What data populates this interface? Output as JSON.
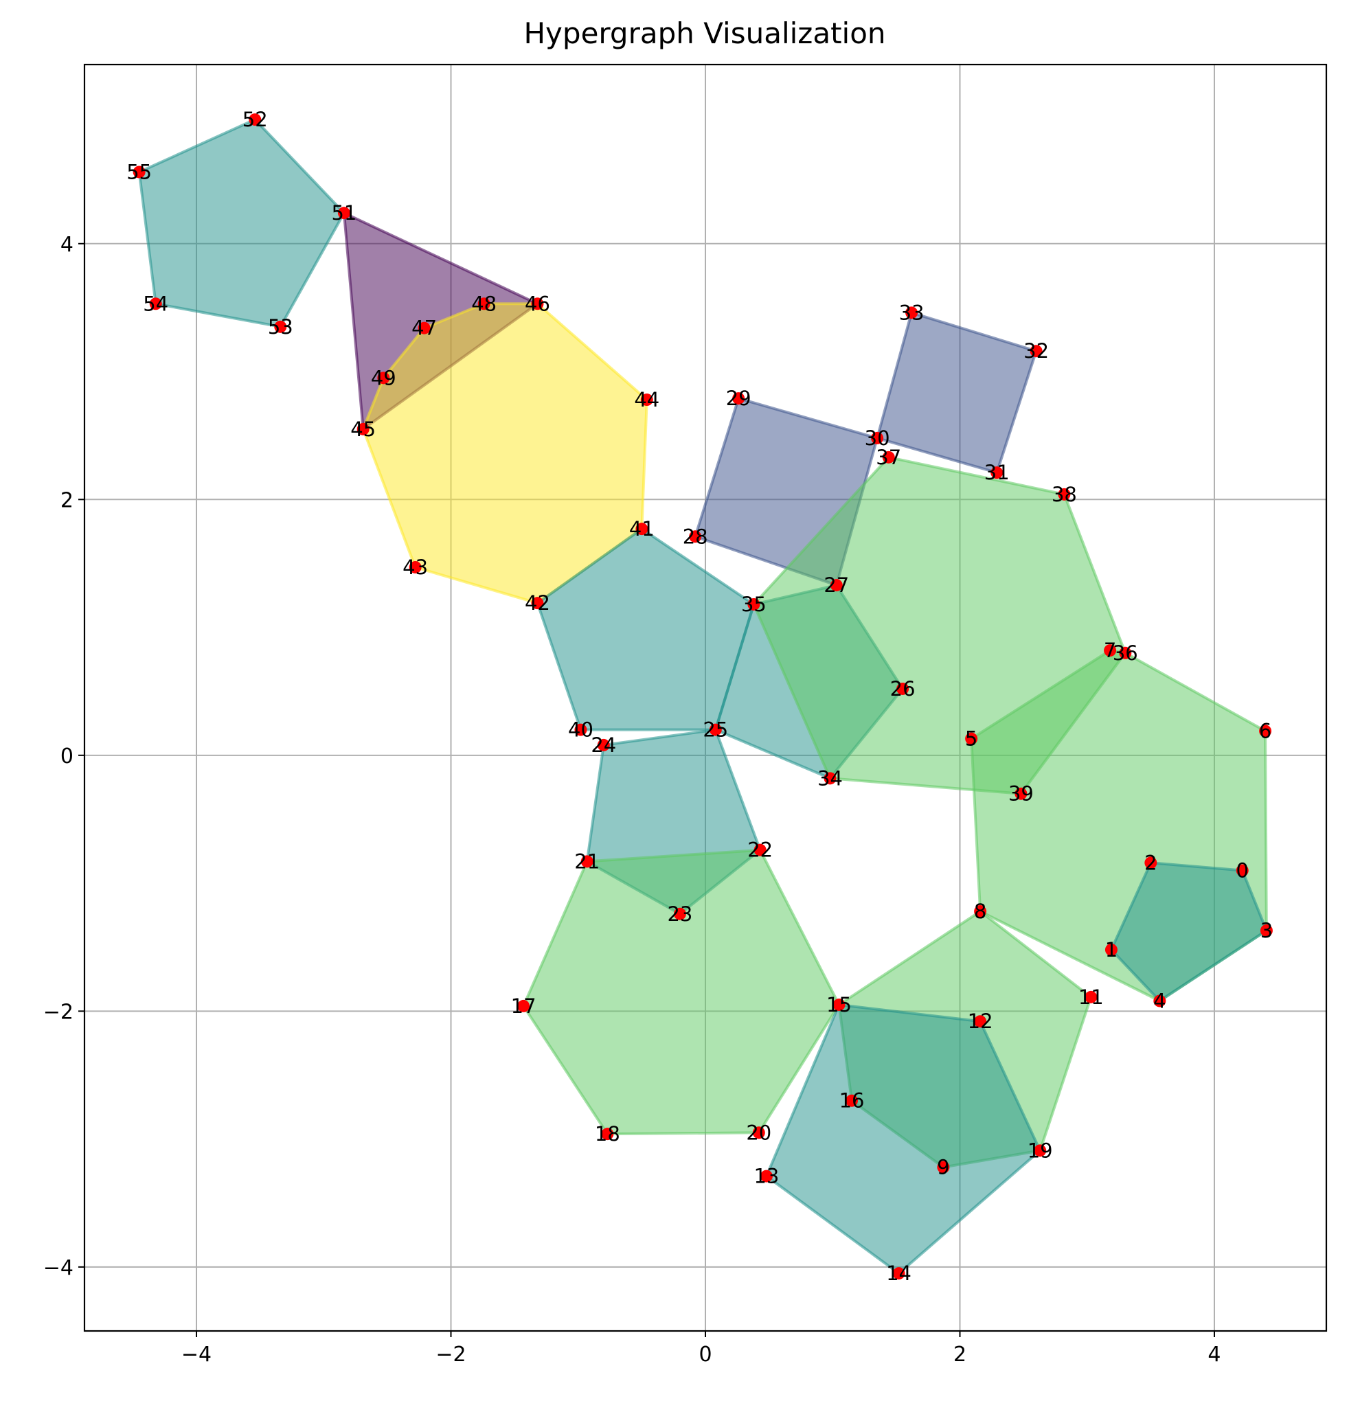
{
  "chart_data": {
    "type": "scatter",
    "title": "Hypergraph Visualization",
    "xlabel": "",
    "ylabel": "",
    "xlim": [
      -4.88,
      4.88
    ],
    "ylim": [
      -4.5,
      5.4
    ],
    "x_ticks": [
      -4,
      -2,
      0,
      2,
      4
    ],
    "y_ticks": [
      -4,
      -2,
      0,
      2,
      4
    ],
    "x_tick_labels": [
      "−4",
      "−2",
      "0",
      "2",
      "4"
    ],
    "y_tick_labels": [
      "−4",
      "−2",
      "0",
      "2",
      "4"
    ],
    "grid": true,
    "node_color": "#ff0000",
    "nodes": [
      {
        "id": "0",
        "x": 4.22,
        "y": -0.9
      },
      {
        "id": "1",
        "x": 3.19,
        "y": -1.52
      },
      {
        "id": "2",
        "x": 3.5,
        "y": -0.84
      },
      {
        "id": "3",
        "x": 4.41,
        "y": -1.37
      },
      {
        "id": "4",
        "x": 3.57,
        "y": -1.92
      },
      {
        "id": "5",
        "x": 2.09,
        "y": 0.13
      },
      {
        "id": "6",
        "x": 4.4,
        "y": 0.19
      },
      {
        "id": "7",
        "x": 3.18,
        "y": 0.82
      },
      {
        "id": "8",
        "x": 2.16,
        "y": -1.22
      },
      {
        "id": "9",
        "x": 1.87,
        "y": -3.22
      },
      {
        "id": "11",
        "x": 3.03,
        "y": -1.89
      },
      {
        "id": "12",
        "x": 2.16,
        "y": -2.08
      },
      {
        "id": "13",
        "x": 0.48,
        "y": -3.29
      },
      {
        "id": "14",
        "x": 1.52,
        "y": -4.05
      },
      {
        "id": "15",
        "x": 1.05,
        "y": -1.95
      },
      {
        "id": "16",
        "x": 1.15,
        "y": -2.7
      },
      {
        "id": "17",
        "x": -1.43,
        "y": -1.96
      },
      {
        "id": "18",
        "x": -0.77,
        "y": -2.96
      },
      {
        "id": "19",
        "x": 2.63,
        "y": -3.09
      },
      {
        "id": "20",
        "x": 0.42,
        "y": -2.95
      },
      {
        "id": "21",
        "x": -0.93,
        "y": -0.83
      },
      {
        "id": "22",
        "x": 0.43,
        "y": -0.74
      },
      {
        "id": "23",
        "x": -0.2,
        "y": -1.24
      },
      {
        "id": "24",
        "x": -0.8,
        "y": 0.08
      },
      {
        "id": "25",
        "x": 0.08,
        "y": 0.2
      },
      {
        "id": "26",
        "x": 1.55,
        "y": 0.52
      },
      {
        "id": "27",
        "x": 1.03,
        "y": 1.33
      },
      {
        "id": "28",
        "x": -0.08,
        "y": 1.71
      },
      {
        "id": "29",
        "x": 0.26,
        "y": 2.79
      },
      {
        "id": "30",
        "x": 1.35,
        "y": 2.48
      },
      {
        "id": "31",
        "x": 2.29,
        "y": 2.21
      },
      {
        "id": "32",
        "x": 2.6,
        "y": 3.16
      },
      {
        "id": "33",
        "x": 1.62,
        "y": 3.46
      },
      {
        "id": "34",
        "x": 0.98,
        "y": -0.18
      },
      {
        "id": "35",
        "x": 0.38,
        "y": 1.18
      },
      {
        "id": "36",
        "x": 3.3,
        "y": 0.8
      },
      {
        "id": "37",
        "x": 1.44,
        "y": 2.33
      },
      {
        "id": "38",
        "x": 2.82,
        "y": 2.04
      },
      {
        "id": "39",
        "x": 2.48,
        "y": -0.3
      },
      {
        "id": "40",
        "x": -0.98,
        "y": 0.2
      },
      {
        "id": "41",
        "x": -0.5,
        "y": 1.77
      },
      {
        "id": "42",
        "x": -1.32,
        "y": 1.19
      },
      {
        "id": "43",
        "x": -2.28,
        "y": 1.47
      },
      {
        "id": "44",
        "x": -0.46,
        "y": 2.78
      },
      {
        "id": "45",
        "x": -2.69,
        "y": 2.55
      },
      {
        "id": "46",
        "x": -1.32,
        "y": 3.53
      },
      {
        "id": "47",
        "x": -2.21,
        "y": 3.34
      },
      {
        "id": "48",
        "x": -1.74,
        "y": 3.53
      },
      {
        "id": "49",
        "x": -2.53,
        "y": 2.95
      },
      {
        "id": "51",
        "x": -2.84,
        "y": 4.24
      },
      {
        "id": "52",
        "x": -3.54,
        "y": 4.97
      },
      {
        "id": "53",
        "x": -3.34,
        "y": 3.35
      },
      {
        "id": "54",
        "x": -4.32,
        "y": 3.53
      },
      {
        "id": "55",
        "x": -4.45,
        "y": 4.56
      }
    ],
    "hyperedges": [
      {
        "nodes": [
          "55",
          "52",
          "51",
          "53",
          "54"
        ],
        "color": "#21918c"
      },
      {
        "nodes": [
          "51",
          "46",
          "45"
        ],
        "color": "#440154"
      },
      {
        "nodes": [
          "45",
          "49",
          "47",
          "48",
          "46",
          "44",
          "41",
          "42",
          "43"
        ],
        "color": "#fde725"
      },
      {
        "nodes": [
          "42",
          "41",
          "35",
          "25",
          "40"
        ],
        "color": "#21918c"
      },
      {
        "nodes": [
          "35",
          "27",
          "26",
          "34",
          "25"
        ],
        "color": "#21918c"
      },
      {
        "nodes": [
          "24",
          "25",
          "22",
          "23",
          "21"
        ],
        "color": "#21918c"
      },
      {
        "nodes": [
          "28",
          "29",
          "30",
          "27"
        ],
        "color": "#3b528b"
      },
      {
        "nodes": [
          "30",
          "33",
          "32",
          "31"
        ],
        "color": "#3b528b"
      },
      {
        "nodes": [
          "35",
          "37",
          "38",
          "36",
          "39",
          "34"
        ],
        "color": "#5ec962"
      },
      {
        "nodes": [
          "5",
          "7",
          "36",
          "6",
          "3",
          "4",
          "8"
        ],
        "color": "#5ec962"
      },
      {
        "nodes": [
          "2",
          "0",
          "3",
          "4",
          "1"
        ],
        "color": "#21918c"
      },
      {
        "nodes": [
          "21",
          "22",
          "15",
          "20",
          "18",
          "17"
        ],
        "color": "#5ec962"
      },
      {
        "nodes": [
          "15",
          "8",
          "11",
          "19",
          "9",
          "16"
        ],
        "color": "#5ec962"
      },
      {
        "nodes": [
          "15",
          "12",
          "19",
          "14",
          "13"
        ],
        "color": "#21918c"
      }
    ]
  }
}
